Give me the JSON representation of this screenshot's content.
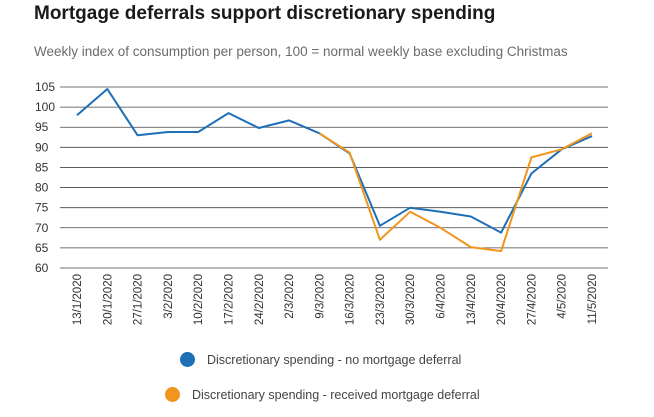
{
  "chart_data": {
    "type": "line",
    "title": "Mortgage deferrals support discretionary spending",
    "subtitle": "Weekly index of consumption per person, 100 = normal weekly base excluding Christmas",
    "categories": [
      "13/1/2020",
      "20/1/2020",
      "27/1/2020",
      "3/2/2020",
      "10/2/2020",
      "17/2/2020",
      "24/2/2020",
      "2/3/2020",
      "9/3/2020",
      "16/3/2020",
      "23/3/2020",
      "30/3/2020",
      "6/4/2020",
      "13/4/2020",
      "20/4/2020",
      "27/4/2020",
      "4/5/2020",
      "11/5/2020"
    ],
    "ylim": [
      60,
      105
    ],
    "yticks": [
      60,
      65,
      70,
      75,
      80,
      85,
      90,
      95,
      100,
      105
    ],
    "grid": true,
    "legend_position": "bottom",
    "series": [
      {
        "name": "Discretionary spending - no mortgage deferral",
        "color": "#1f6fb8",
        "values": [
          98,
          104.5,
          93,
          93.8,
          93.8,
          98.5,
          94.8,
          96.7,
          93.5,
          88.5,
          70.5,
          75,
          74,
          72.8,
          68.8,
          83.5,
          89.5,
          92.8
        ]
      },
      {
        "name": "Discretionary spending - received mortgage deferral",
        "color": "#f0961c",
        "values": [
          null,
          null,
          null,
          null,
          null,
          null,
          null,
          null,
          93.5,
          88.7,
          67,
          74,
          70,
          65.2,
          64.2,
          87.5,
          89.5,
          93.5
        ]
      }
    ]
  },
  "legend": {
    "items": [
      {
        "label": "Discretionary spending - no mortgage deferral",
        "color": "#1f6fb8"
      },
      {
        "label": "Discretionary spending - received mortgage deferral",
        "color": "#f0961c"
      }
    ]
  }
}
